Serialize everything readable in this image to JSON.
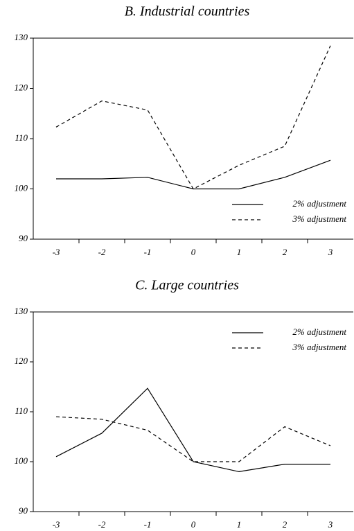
{
  "chart_data": [
    {
      "type": "line",
      "title": "B. Industrial countries",
      "categories": [
        "-3",
        "-2",
        "-1",
        "0",
        "1",
        "2",
        "3"
      ],
      "series": [
        {
          "name": "2% adjustment",
          "color": "#000000",
          "linestyle": "solid",
          "values": [
            102,
            102,
            102.3,
            100,
            100,
            102.3,
            105.7
          ]
        },
        {
          "name": "3% adjustment",
          "color": "#000000",
          "linestyle": "dashed",
          "values": [
            112.3,
            117.5,
            115.7,
            100,
            104.7,
            108.5,
            128.5
          ]
        }
      ],
      "ylim": [
        90,
        130
      ],
      "yticks": [
        90,
        100,
        110,
        120,
        130
      ],
      "legend": "lower right"
    },
    {
      "type": "line",
      "title": "C. Large countries",
      "categories": [
        "-3",
        "-2",
        "-1",
        "0",
        "1",
        "2",
        "3"
      ],
      "series": [
        {
          "name": "2% adjustment",
          "color": "#000000",
          "linestyle": "solid",
          "values": [
            101,
            105.7,
            114.7,
            100,
            98,
            99.5,
            99.5
          ]
        },
        {
          "name": "3% adjustment",
          "color": "#000000",
          "linestyle": "dashed",
          "values": [
            109,
            108.5,
            106.3,
            100,
            100,
            107,
            103.2
          ]
        }
      ],
      "ylim": [
        90,
        130
      ],
      "yticks": [
        90,
        100,
        110,
        120,
        130
      ],
      "legend": "upper right"
    }
  ]
}
